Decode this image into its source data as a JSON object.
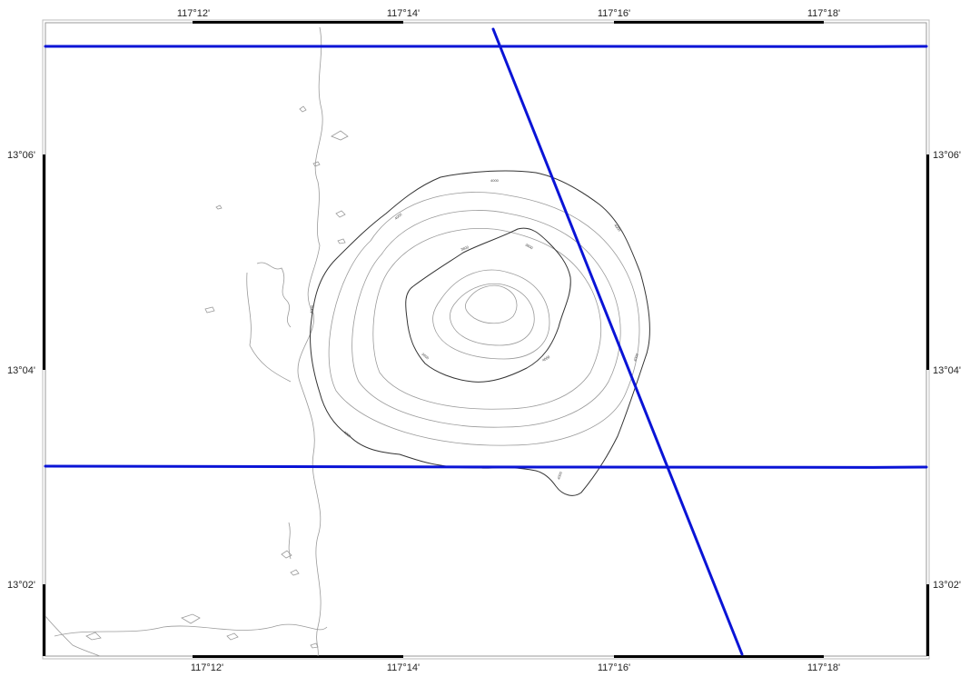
{
  "map": {
    "longitude_ticks": [
      {
        "label": "117°12'",
        "minutes": 12
      },
      {
        "label": "117°14'",
        "minutes": 14
      },
      {
        "label": "117°16'",
        "minutes": 16
      },
      {
        "label": "117°18'",
        "minutes": 18
      }
    ],
    "latitude_ticks": [
      {
        "label": "13°06'",
        "minutes": 6
      },
      {
        "label": "13°04'",
        "minutes": 4
      },
      {
        "label": "13°02'",
        "minutes": 2
      }
    ],
    "colors": {
      "track": "#0a14d6",
      "frame": "#000000",
      "contour_major": "#333333",
      "contour_minor": "#9a9a9a",
      "background": "#ffffff"
    },
    "contour_labels": [
      "4000",
      "4000",
      "3800",
      "3600",
      "3600",
      "4000",
      "4000",
      "4000",
      "4000",
      "4000",
      "4000"
    ]
  }
}
